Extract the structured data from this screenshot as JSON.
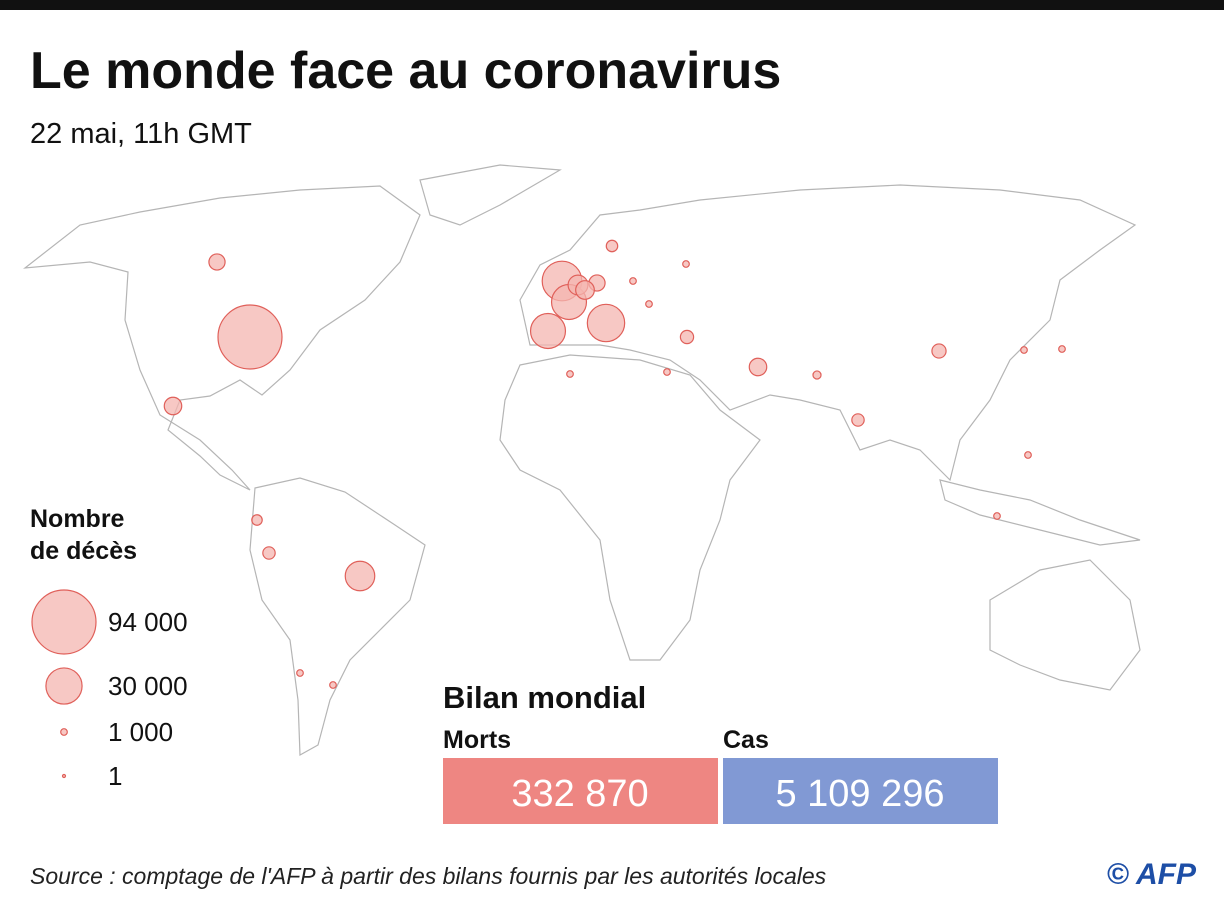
{
  "header": {
    "title": "Le monde face au coronavirus",
    "subtitle": "22 mai, 11h GMT"
  },
  "legend": {
    "title": [
      "Nombre",
      "de décès"
    ],
    "items": [
      {
        "value": 94000,
        "label": "94 000"
      },
      {
        "value": 30000,
        "label": "30 000"
      },
      {
        "value": 1000,
        "label": "1 000"
      },
      {
        "value": 1,
        "label": "1"
      }
    ]
  },
  "map": {
    "deaths": [
      94000,
      36000,
      28000,
      28000,
      32000,
      9000,
      6000,
      8000,
      20000,
      7000,
      6000,
      7000,
      3000,
      4000,
      3500,
      4600,
      3500,
      2500,
      1500,
      1000,
      1000,
      1000,
      1000,
      1000,
      1000,
      1000,
      1000,
      1000,
      1000,
      1000
    ]
  },
  "summary": {
    "title": "Bilan mondial",
    "deaths": {
      "label": "Morts",
      "value": "332 870"
    },
    "cases": {
      "label": "Cas",
      "value": "5 109 296"
    }
  },
  "footer": {
    "source": "Source : comptage de l'AFP à partir des bilans fournis par les autorités locales",
    "credit": "© AFP"
  }
}
